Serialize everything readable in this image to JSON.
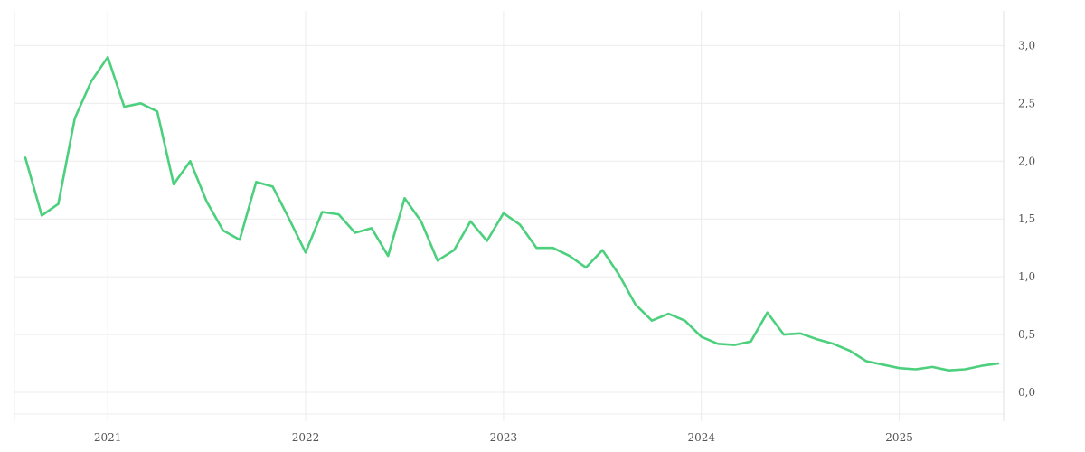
{
  "chart_data": {
    "type": "line",
    "title": "",
    "xlabel": "",
    "ylabel": "",
    "y_axis_side": "right",
    "grid": true,
    "legend": "none",
    "xlim": [
      "2020-08",
      "2025-07"
    ],
    "ylim": [
      -0.25,
      3.3
    ],
    "y_ticks": [
      0.0,
      0.5,
      1.0,
      1.5,
      2.0,
      2.5,
      3.0
    ],
    "y_tick_labels": [
      "0,0",
      "0,5",
      "1,0",
      "1,5",
      "2,0",
      "2,5",
      "3,0"
    ],
    "x_ticks": [
      "2021-01",
      "2022-01",
      "2023-01",
      "2024-01",
      "2025-01"
    ],
    "x_tick_labels": [
      "2021",
      "2022",
      "2023",
      "2024",
      "2025"
    ],
    "series": [
      {
        "color": "#4cd07d",
        "x": [
          "2020-08",
          "2020-09",
          "2020-10",
          "2020-11",
          "2020-12",
          "2021-01",
          "2021-02",
          "2021-03",
          "2021-04",
          "2021-05",
          "2021-06",
          "2021-07",
          "2021-08",
          "2021-09",
          "2021-10",
          "2021-11",
          "2021-12",
          "2022-01",
          "2022-02",
          "2022-03",
          "2022-04",
          "2022-05",
          "2022-06",
          "2022-07",
          "2022-08",
          "2022-09",
          "2022-10",
          "2022-11",
          "2022-12",
          "2023-01",
          "2023-02",
          "2023-03",
          "2023-04",
          "2023-05",
          "2023-06",
          "2023-07",
          "2023-08",
          "2023-09",
          "2023-10",
          "2023-11",
          "2023-12",
          "2024-01",
          "2024-02",
          "2024-03",
          "2024-04",
          "2024-05",
          "2024-06",
          "2024-07",
          "2024-08",
          "2024-09",
          "2024-10",
          "2024-11",
          "2024-12",
          "2025-01",
          "2025-02",
          "2025-03",
          "2025-04",
          "2025-05",
          "2025-06",
          "2025-07"
        ],
        "values": [
          2.03,
          1.53,
          1.63,
          2.37,
          2.69,
          2.9,
          2.47,
          2.5,
          2.43,
          1.8,
          2.0,
          1.65,
          1.4,
          1.32,
          1.82,
          1.78,
          1.5,
          1.21,
          1.56,
          1.54,
          1.38,
          1.42,
          1.18,
          1.68,
          1.48,
          1.14,
          1.23,
          1.48,
          1.31,
          1.55,
          1.45,
          1.25,
          1.25,
          1.18,
          1.08,
          1.23,
          1.02,
          0.76,
          0.62,
          0.68,
          0.62,
          0.48,
          0.42,
          0.41,
          0.44,
          0.69,
          0.5,
          0.51,
          0.46,
          0.42,
          0.36,
          0.27,
          0.24,
          0.21,
          0.2,
          0.22,
          0.19,
          0.2,
          0.23,
          0.25
        ]
      }
    ]
  }
}
